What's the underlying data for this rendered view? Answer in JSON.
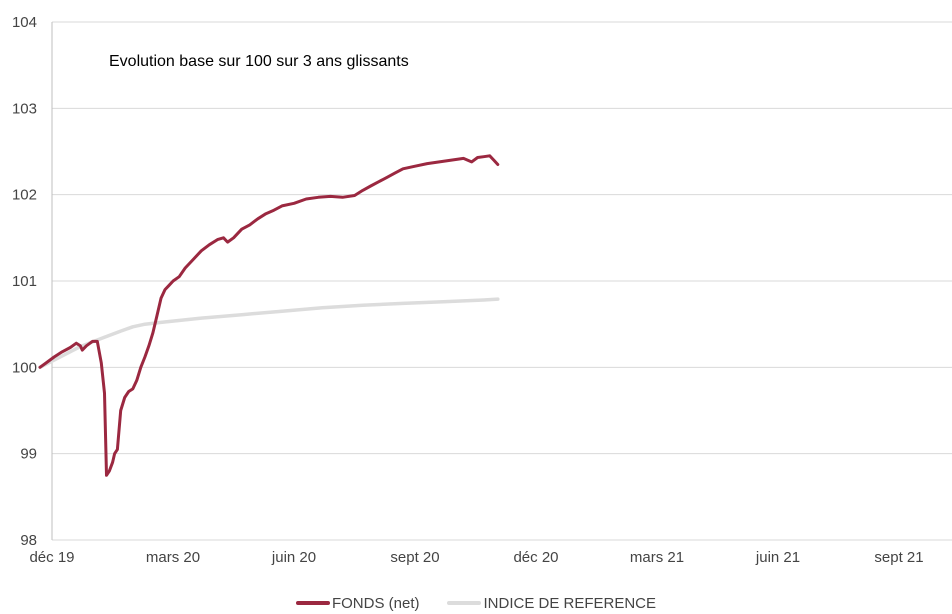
{
  "chart_data": {
    "type": "line",
    "title": "Evolution base sur 100 sur 3 ans glissants",
    "xlabel": "",
    "ylabel": "",
    "ylim": [
      98,
      104
    ],
    "yticks": [
      "98",
      "99",
      "100",
      "101",
      "102",
      "103",
      "104"
    ],
    "xticks": [
      "déc 19",
      "mars 20",
      "juin 20",
      "sept 20",
      "déc 20",
      "mars 21",
      "juin 21",
      "sept 21"
    ],
    "grid": "horizontal",
    "legend": "bottom",
    "series": [
      {
        "name": "FONDS (net)",
        "color": "#9b2840",
        "points": [
          [
            0.0,
            100.0
          ],
          [
            0.15,
            100.05
          ],
          [
            0.35,
            100.12
          ],
          [
            0.55,
            100.18
          ],
          [
            0.75,
            100.23
          ],
          [
            0.9,
            100.28
          ],
          [
            1.0,
            100.25
          ],
          [
            1.05,
            100.2
          ],
          [
            1.15,
            100.25
          ],
          [
            1.3,
            100.3
          ],
          [
            1.42,
            100.3
          ],
          [
            1.52,
            100.05
          ],
          [
            1.6,
            99.7
          ],
          [
            1.65,
            98.75
          ],
          [
            1.72,
            98.8
          ],
          [
            1.8,
            98.9
          ],
          [
            1.85,
            99.0
          ],
          [
            1.92,
            99.05
          ],
          [
            2.0,
            99.5
          ],
          [
            2.1,
            99.65
          ],
          [
            2.2,
            99.72
          ],
          [
            2.3,
            99.75
          ],
          [
            2.4,
            99.85
          ],
          [
            2.5,
            100.0
          ],
          [
            2.6,
            100.12
          ],
          [
            2.7,
            100.25
          ],
          [
            2.8,
            100.4
          ],
          [
            2.9,
            100.6
          ],
          [
            3.0,
            100.8
          ],
          [
            3.1,
            100.9
          ],
          [
            3.2,
            100.95
          ],
          [
            3.3,
            101.0
          ],
          [
            3.45,
            101.05
          ],
          [
            3.6,
            101.15
          ],
          [
            3.8,
            101.25
          ],
          [
            4.0,
            101.35
          ],
          [
            4.2,
            101.42
          ],
          [
            4.4,
            101.48
          ],
          [
            4.55,
            101.5
          ],
          [
            4.65,
            101.45
          ],
          [
            4.8,
            101.5
          ],
          [
            5.0,
            101.6
          ],
          [
            5.2,
            101.65
          ],
          [
            5.4,
            101.72
          ],
          [
            5.6,
            101.78
          ],
          [
            5.8,
            101.82
          ],
          [
            6.0,
            101.87
          ],
          [
            6.3,
            101.9
          ],
          [
            6.6,
            101.95
          ],
          [
            6.9,
            101.97
          ],
          [
            7.2,
            101.98
          ],
          [
            7.5,
            101.97
          ],
          [
            7.8,
            101.99
          ],
          [
            8.0,
            102.05
          ],
          [
            8.2,
            102.1
          ],
          [
            8.4,
            102.15
          ],
          [
            8.6,
            102.2
          ],
          [
            8.8,
            102.25
          ],
          [
            9.0,
            102.3
          ],
          [
            9.3,
            102.33
          ],
          [
            9.6,
            102.36
          ],
          [
            9.9,
            102.38
          ],
          [
            10.2,
            102.4
          ],
          [
            10.5,
            102.42
          ],
          [
            10.7,
            102.38
          ],
          [
            10.85,
            102.43
          ],
          [
            11.0,
            102.44
          ],
          [
            11.15,
            102.45
          ],
          [
            11.25,
            102.4
          ],
          [
            11.35,
            102.35
          ]
        ]
      },
      {
        "name": "INDICE DE REFERENCE",
        "color": "#dcdcdc",
        "points": [
          [
            0.0,
            100.0
          ],
          [
            0.5,
            100.12
          ],
          [
            1.0,
            100.24
          ],
          [
            1.5,
            100.33
          ],
          [
            2.0,
            100.42
          ],
          [
            2.3,
            100.47
          ],
          [
            2.6,
            100.5
          ],
          [
            3.0,
            100.52
          ],
          [
            4.0,
            100.57
          ],
          [
            5.0,
            100.61
          ],
          [
            6.0,
            100.65
          ],
          [
            7.0,
            100.69
          ],
          [
            8.0,
            100.72
          ],
          [
            9.0,
            100.74
          ],
          [
            10.0,
            100.76
          ],
          [
            11.0,
            100.78
          ],
          [
            11.35,
            100.79
          ]
        ]
      }
    ]
  }
}
